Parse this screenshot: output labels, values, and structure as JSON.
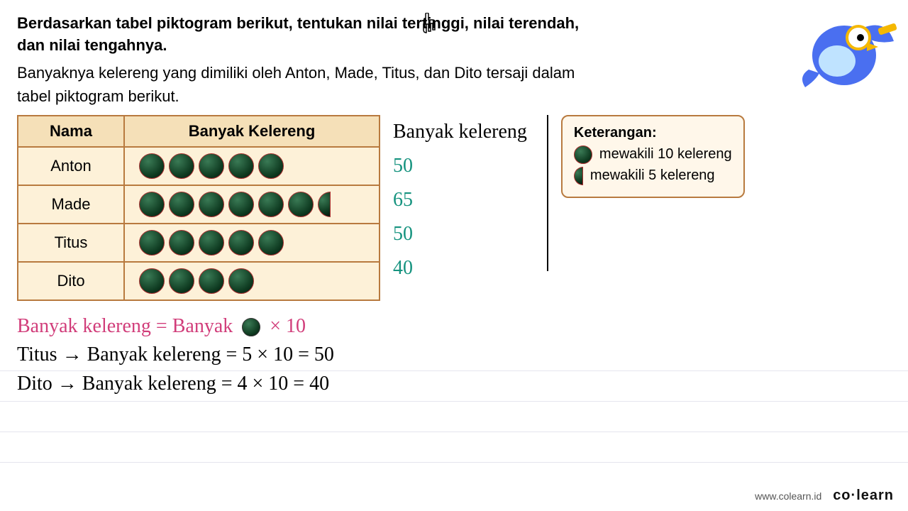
{
  "question_line1": "Berdasarkan tabel piktogram berikut, tentukan nilai tertinggi, nilai terendah,",
  "question_line2": "dan nilai tengahnya.",
  "description_line1": "Banyaknya kelereng yang dimiliki oleh Anton, Made, Titus, dan Dito tersaji dalam",
  "description_line2": "tabel piktogram berikut.",
  "table": {
    "header_name": "Nama",
    "header_count": "Banyak Kelereng",
    "rows": [
      {
        "name": "Anton",
        "full": 5,
        "half": 0,
        "value": "50"
      },
      {
        "name": "Made",
        "full": 6,
        "half": 1,
        "value": "65"
      },
      {
        "name": "Titus",
        "full": 5,
        "half": 0,
        "value": "50"
      },
      {
        "name": "Dito",
        "full": 4,
        "half": 0,
        "value": "40"
      }
    ]
  },
  "annot_header": "Banyak kelereng",
  "legend": {
    "title": "Keterangan:",
    "full_text": "mewakili 10 kelereng",
    "half_text": "mewakili 5 kelereng"
  },
  "formula_prefix": "Banyak kelereng = Banyak",
  "formula_suffix": "× 10",
  "calc1": "Titus  →  Banyak kelereng = 5 × 10 = 50",
  "calc2": "Dito  →  Banyak kelereng = 4 × 10 = 40",
  "footer_url": "www.colearn.id",
  "footer_brand": "co·learn",
  "colors": {
    "marble_dark": "#0e3a20",
    "table_border": "#b87a3f",
    "table_bg": "#fdf1d8",
    "handwritten_teal": "#16937f",
    "formula_pink": "#d13d7a"
  }
}
